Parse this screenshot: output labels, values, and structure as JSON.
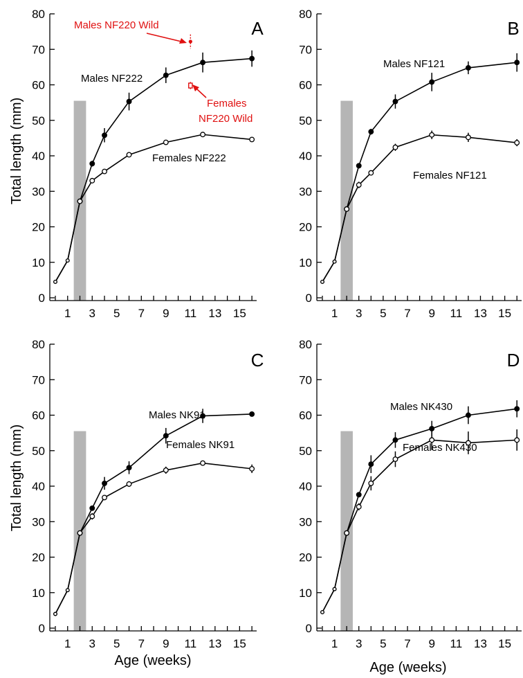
{
  "chart_data": [
    {
      "panel": "A",
      "type": "line",
      "xlabel": "",
      "ylabel": "Total length (mm)",
      "xlim": [
        0,
        16.5
      ],
      "ylim": [
        0,
        80
      ],
      "xticks": [
        "1",
        "3",
        "5",
        "7",
        "9",
        "11",
        "13",
        "15"
      ],
      "yticks": [
        "0",
        "10",
        "20",
        "30",
        "40",
        "50",
        "60",
        "70",
        "80"
      ],
      "shade": {
        "x": [
          1.5,
          2.5
        ],
        "y_top": 55.5
      },
      "series": [
        {
          "name": "Males NF222",
          "x": [
            0,
            1,
            2,
            3,
            4,
            6,
            9,
            12,
            16
          ],
          "values": [
            4.5,
            10.5,
            27.2,
            37.8,
            45.8,
            55.3,
            62.7,
            66.3,
            67.4
          ],
          "err": [
            0,
            0,
            0,
            0.8,
            2.0,
            2.5,
            2.2,
            2.8,
            2.3
          ],
          "open": false
        },
        {
          "name": "Females NF222",
          "x": [
            0,
            1,
            2,
            3,
            4,
            6,
            9,
            12,
            16
          ],
          "values": [
            4.5,
            10.5,
            27.2,
            33.0,
            35.6,
            40.3,
            43.8,
            46.0,
            44.6
          ],
          "err": [
            0,
            0,
            0,
            0.5,
            0.5,
            0.5,
            0.5,
            0.6,
            0.6
          ],
          "open": true
        }
      ],
      "wild_points": [
        {
          "x": 11,
          "y": 72.2,
          "err": 2.0,
          "marker": "circle"
        },
        {
          "x": 11,
          "y": 59.8,
          "err": 1.0,
          "marker": "square"
        }
      ],
      "labels": {
        "males": "Males NF222",
        "females": "Females NF222",
        "wild_males": "Males NF220 Wild",
        "wild_females_1": "Females",
        "wild_females_2": "NF220 Wild"
      },
      "annotation_color": "#e01010"
    },
    {
      "panel": "B",
      "type": "line",
      "xlabel": "",
      "ylabel": "",
      "xlim": [
        0,
        16.5
      ],
      "ylim": [
        0,
        80
      ],
      "xticks": [
        "1",
        "3",
        "5",
        "7",
        "9",
        "11",
        "13",
        "15"
      ],
      "yticks": [
        "0",
        "10",
        "20",
        "30",
        "40",
        "50",
        "60",
        "70",
        "80"
      ],
      "shade": {
        "x": [
          1.5,
          2.5
        ],
        "y_top": 55.5
      },
      "series": [
        {
          "name": "Males NF121",
          "x": [
            0,
            1,
            2,
            3,
            4,
            6,
            9,
            12,
            16
          ],
          "values": [
            4.5,
            10.2,
            25.0,
            37.2,
            46.8,
            55.3,
            60.8,
            64.8,
            66.3
          ],
          "err": [
            0,
            0,
            0,
            0.5,
            0.8,
            2.0,
            2.6,
            1.8,
            2.6
          ],
          "open": false
        },
        {
          "name": "Females NF121",
          "x": [
            0,
            1,
            2,
            3,
            4,
            6,
            9,
            12,
            16
          ],
          "values": [
            4.5,
            10.2,
            25.0,
            31.8,
            35.2,
            42.4,
            45.9,
            45.2,
            43.7
          ],
          "err": [
            0,
            0,
            0,
            0.9,
            0.7,
            1.0,
            1.2,
            1.3,
            1.0
          ],
          "open": true
        }
      ],
      "labels": {
        "males": "Males NF121",
        "females": "Females NF121"
      }
    },
    {
      "panel": "C",
      "type": "line",
      "xlabel": "Age (weeks)",
      "ylabel": "Total length (mm)",
      "xlim": [
        0,
        16.5
      ],
      "ylim": [
        0,
        80
      ],
      "xticks": [
        "1",
        "3",
        "5",
        "7",
        "9",
        "11",
        "13",
        "15"
      ],
      "yticks": [
        "0",
        "10",
        "20",
        "30",
        "40",
        "50",
        "60",
        "70",
        "80"
      ],
      "shade": {
        "x": [
          1.5,
          2.5
        ],
        "y_top": 55.5
      },
      "series": [
        {
          "name": "Males NK91",
          "x": [
            0,
            1,
            2,
            3,
            4,
            6,
            9,
            12,
            16
          ],
          "values": [
            4.0,
            10.7,
            26.8,
            33.8,
            40.8,
            45.2,
            54.2,
            59.8,
            60.3
          ],
          "err": [
            0,
            0,
            0,
            0.6,
            1.8,
            1.8,
            2.2,
            2.0,
            0.5
          ],
          "open": false
        },
        {
          "name": "Females NK91",
          "x": [
            0,
            1,
            2,
            3,
            4,
            6,
            9,
            12,
            16
          ],
          "values": [
            4.0,
            10.7,
            26.8,
            31.5,
            36.8,
            40.6,
            44.5,
            46.5,
            44.9
          ],
          "err": [
            0,
            0,
            0,
            0.9,
            0.6,
            0.8,
            1.0,
            0.7,
            1.2
          ],
          "open": true
        }
      ],
      "labels": {
        "males": "Males NK91",
        "females": "Females NK91"
      }
    },
    {
      "panel": "D",
      "type": "line",
      "xlabel": "Age (weeks)",
      "ylabel": "",
      "xlim": [
        0,
        16.5
      ],
      "ylim": [
        0,
        80
      ],
      "xticks": [
        "1",
        "3",
        "5",
        "7",
        "9",
        "11",
        "13",
        "15"
      ],
      "yticks": [
        "0",
        "10",
        "20",
        "30",
        "40",
        "50",
        "60",
        "70",
        "80"
      ],
      "shade": {
        "x": [
          1.5,
          2.5
        ],
        "y_top": 55.5
      },
      "series": [
        {
          "name": "Males NK430",
          "x": [
            0,
            1,
            2,
            3,
            4,
            6,
            9,
            12,
            16
          ],
          "values": [
            4.5,
            11.0,
            26.8,
            37.6,
            46.2,
            53.0,
            56.2,
            60.0,
            61.8
          ],
          "err": [
            0,
            0,
            0,
            0.7,
            2.5,
            2.2,
            2.2,
            2.5,
            2.4
          ],
          "open": false
        },
        {
          "name": "Females NK430",
          "x": [
            0,
            1,
            2,
            3,
            4,
            6,
            9,
            12,
            16
          ],
          "values": [
            4.5,
            11.0,
            26.8,
            34.2,
            40.8,
            47.6,
            53.0,
            52.2,
            53.0
          ],
          "err": [
            0,
            0,
            0,
            1.0,
            2.0,
            2.2,
            2.8,
            3.2,
            3.0
          ],
          "open": true
        }
      ],
      "labels": {
        "males": "Males NK430",
        "females": "Females NK430"
      }
    }
  ]
}
